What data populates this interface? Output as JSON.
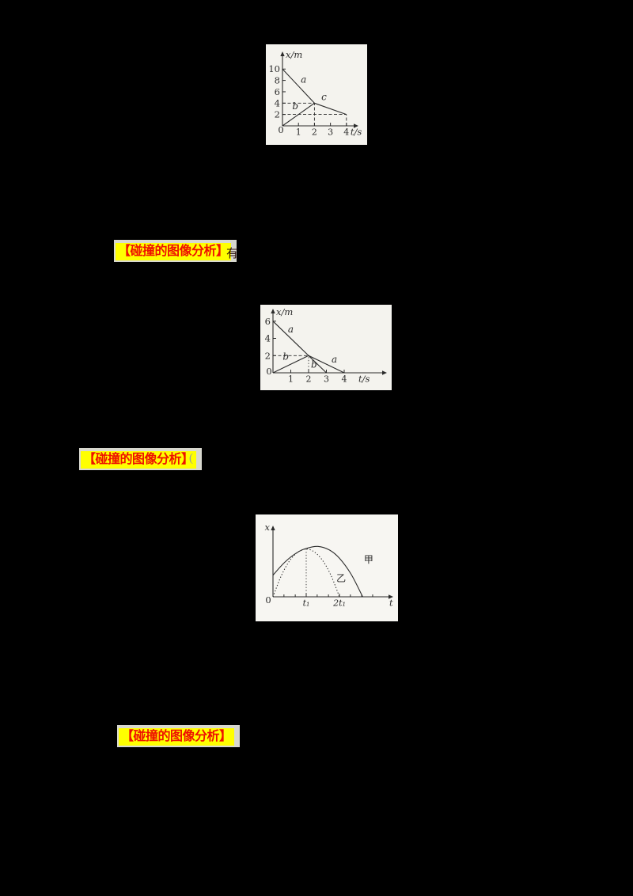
{
  "page": {
    "background": "#000000"
  },
  "highlight_labels": [
    {
      "text": "【碰撞的图像分析】",
      "trailing": "有",
      "bg": "#ffff00",
      "color": "#ee1100"
    },
    {
      "text": "【碰撞的图像分析】",
      "trailing": "(",
      "bg": "#ffff00",
      "color": "#ee1100"
    },
    {
      "text": "【碰撞的图像分析】",
      "trailing": "",
      "bg": "#ffff00",
      "color": "#ee1100"
    }
  ],
  "chart_data": [
    {
      "type": "line",
      "title": "",
      "xlabel": "t/s",
      "ylabel": "x/m",
      "xlim": [
        0,
        4.75
      ],
      "ylim": [
        0,
        13.1
      ],
      "xlabel_x": 4.25,
      "ylabel_side": "right",
      "grid": false,
      "origin_label": "0",
      "xticks": [
        {
          "v": 1,
          "label": "1"
        },
        {
          "v": 2,
          "label": "2"
        },
        {
          "v": 3,
          "label": "3"
        },
        {
          "v": 4,
          "label": "4"
        }
      ],
      "yticks": [
        {
          "v": 2,
          "label": "2"
        },
        {
          "v": 4,
          "label": "4"
        },
        {
          "v": 6,
          "label": "6"
        },
        {
          "v": 8,
          "label": "8"
        },
        {
          "v": 10,
          "label": "10"
        }
      ],
      "minor_xticks": [],
      "series": [
        {
          "name": "a",
          "style": "solid",
          "smooth": false,
          "points": [
            [
              0,
              10
            ],
            [
              2,
              4
            ]
          ],
          "labels": [
            {
              "text": "a",
              "x": 1.32,
              "y": 7.6
            }
          ]
        },
        {
          "name": "b",
          "style": "solid",
          "smooth": false,
          "points": [
            [
              0,
              0
            ],
            [
              2,
              4
            ]
          ],
          "labels": [
            {
              "text": "b",
              "x": 0.8,
              "y": 2.95
            }
          ]
        },
        {
          "name": "c",
          "style": "solid",
          "smooth": false,
          "points": [
            [
              2,
              4
            ],
            [
              4,
              2
            ]
          ],
          "labels": [
            {
              "text": "c",
              "x": 2.6,
              "y": 4.55
            }
          ]
        }
      ],
      "guides": [
        {
          "style": "dashed",
          "points": [
            [
              0,
              4
            ],
            [
              2,
              4
            ]
          ]
        },
        {
          "style": "dashed",
          "points": [
            [
              0,
              2
            ],
            [
              4,
              2
            ]
          ]
        },
        {
          "style": "dashed",
          "points": [
            [
              2,
              0
            ],
            [
              2,
              4
            ]
          ]
        },
        {
          "style": "dashed",
          "points": [
            [
              4,
              0
            ],
            [
              4,
              2
            ]
          ]
        }
      ],
      "annotation": "a: 10 m to 4 m over 0-2 s; b: 0 to 4 m over 0-2 s; collide at (2 s, 4 m); c: 4 m to 2 m over 2-4 s"
    },
    {
      "type": "line",
      "title": "",
      "xlabel": "t/s",
      "ylabel": "x/m",
      "xlim": [
        0,
        6.4
      ],
      "ylim": [
        0,
        7.45
      ],
      "xlabel_x": 4.8,
      "ylabel_side": "right",
      "grid": false,
      "origin_label": "0",
      "xticks": [
        {
          "v": 1,
          "label": "1"
        },
        {
          "v": 2,
          "label": "2"
        },
        {
          "v": 3,
          "label": "3"
        },
        {
          "v": 4,
          "label": "4"
        }
      ],
      "yticks": [
        {
          "v": 2,
          "label": "2"
        },
        {
          "v": 4,
          "label": "4"
        },
        {
          "v": 6,
          "label": "6"
        }
      ],
      "minor_xticks": [],
      "series": [
        {
          "name": "a",
          "style": "solid",
          "smooth": false,
          "points": [
            [
              0,
              6
            ],
            [
              2,
              2
            ],
            [
              4,
              0
            ]
          ],
          "labels": [
            {
              "text": "a",
              "x": 1.0,
              "y": 4.7
            },
            {
              "text": "a",
              "x": 3.45,
              "y": 1.2
            }
          ]
        },
        {
          "name": "b",
          "style": "solid",
          "smooth": false,
          "points": [
            [
              0,
              0
            ],
            [
              2,
              2
            ],
            [
              3,
              0
            ]
          ],
          "labels": [
            {
              "text": "b",
              "x": 0.72,
              "y": 1.5
            },
            {
              "text": "b",
              "x": 2.3,
              "y": 0.62
            }
          ]
        }
      ],
      "guides": [
        {
          "style": "dashed",
          "points": [
            [
              0,
              2
            ],
            [
              2,
              2
            ]
          ]
        },
        {
          "style": "dotted",
          "points": [
            [
              2,
              0
            ],
            [
              2,
              2
            ]
          ]
        }
      ],
      "annotation": "a: 6 m to 2 m over 0-2 s then 2 m to 0 over 2-4 s; b: 0 to 2 m over 0-2 s then 2 m to 0 over 2-3 s; collide at (2 s, 2 m)"
    },
    {
      "type": "line",
      "title": "",
      "xlabel": "t",
      "ylabel": "x",
      "xlim": [
        0,
        3.62
      ],
      "ylim": [
        0,
        1.385
      ],
      "xlabel_x": 3.5,
      "ylabel_side": "left",
      "grid": false,
      "origin_label": "0",
      "xtick_italic": true,
      "xticks": [
        {
          "v": 1,
          "label": "t₁"
        },
        {
          "v": 2,
          "label": "2t₁"
        }
      ],
      "yticks": [],
      "minor_xticks": [
        0.33,
        0.67,
        1.33,
        1.67,
        2.33,
        2.67,
        3.0
      ],
      "series": [
        {
          "name": "甲",
          "style": "solid",
          "smooth": true,
          "points": [
            [
              0,
              0.42
            ],
            [
              0.35,
              0.67
            ],
            [
              0.7,
              0.85
            ],
            [
              1,
              0.94
            ],
            [
              1.35,
              0.98
            ],
            [
              1.7,
              0.91
            ],
            [
              2,
              0.75
            ],
            [
              2.35,
              0.44
            ],
            [
              2.7,
              0
            ]
          ],
          "labels": [
            {
              "text": "甲",
              "x": 2.88,
              "y": 0.66
            }
          ]
        },
        {
          "name": "乙",
          "style": "dotted",
          "smooth": true,
          "points": [
            [
              0,
              0
            ],
            [
              0.25,
              0.41
            ],
            [
              0.5,
              0.7
            ],
            [
              0.75,
              0.87
            ],
            [
              1,
              0.93
            ],
            [
              1.25,
              0.87
            ],
            [
              1.5,
              0.7
            ],
            [
              1.75,
              0.41
            ],
            [
              2,
              0
            ]
          ],
          "labels": [
            {
              "text": "乙",
              "x": 2.05,
              "y": 0.3
            }
          ]
        }
      ],
      "guides": [
        {
          "style": "dotted",
          "points": [
            [
              1,
              0
            ],
            [
              1,
              0.93
            ]
          ]
        }
      ],
      "annotation": "甲 (solid): starts at positive x, arches over peak after t1, returns to 0 near 2.7t1; 乙 (dotted): parabola from 0 peaking near t1, back to 0 at 2t1; curves cross at t1"
    }
  ]
}
